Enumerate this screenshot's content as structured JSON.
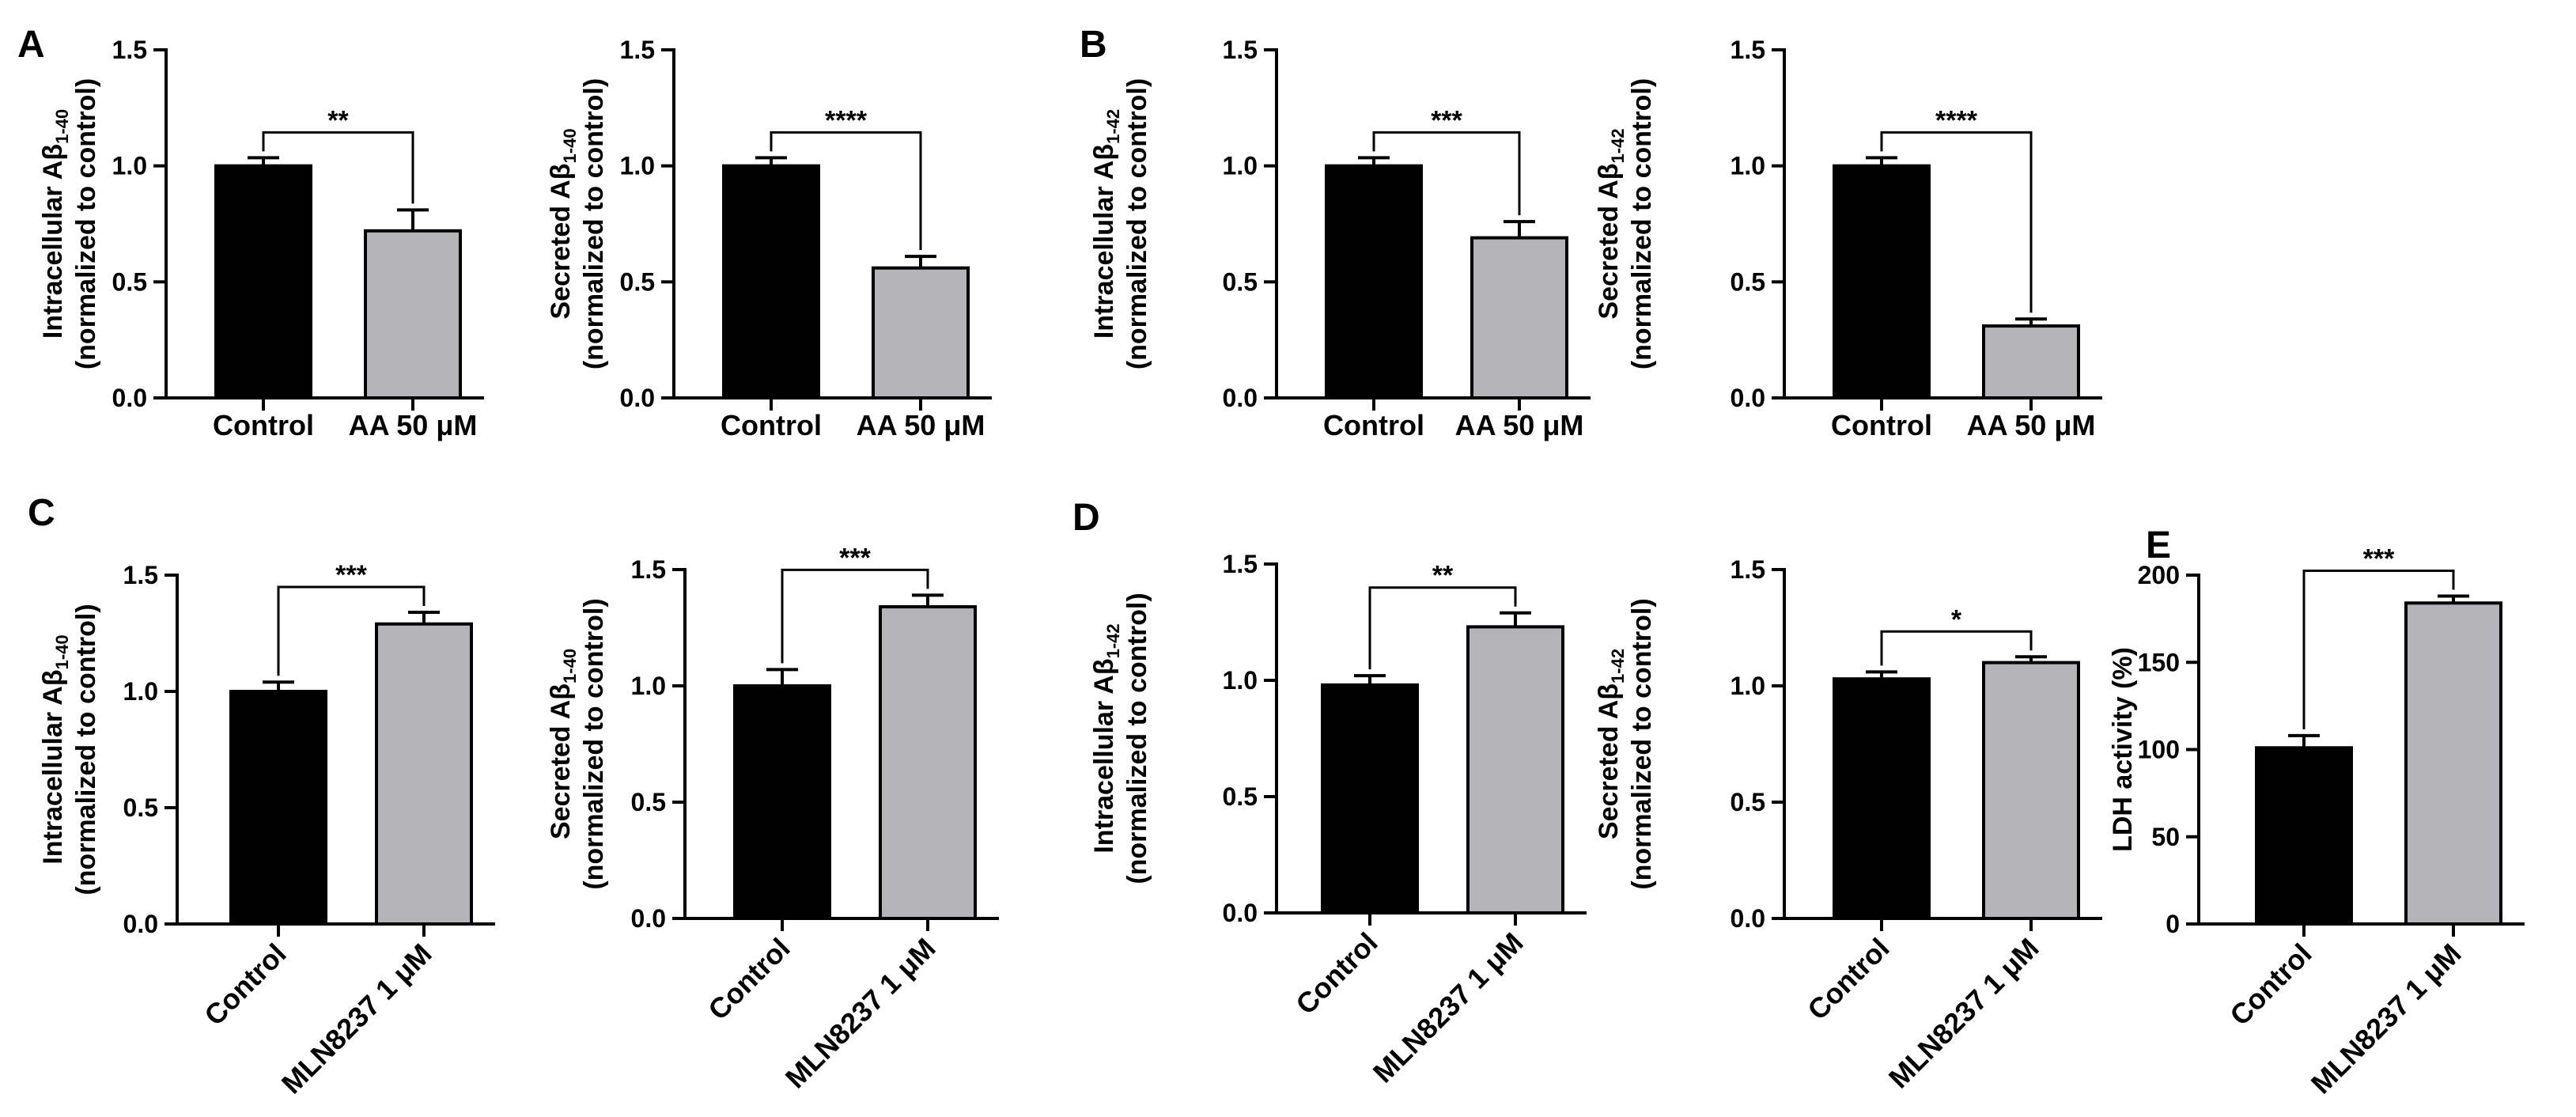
{
  "colors": {
    "control": "#000000",
    "treatment": "#b3b3b8",
    "axis": "#000000"
  },
  "panel_letters": [
    "A",
    "B",
    "C",
    "D",
    "E"
  ],
  "chart_data": [
    {
      "type": "bar",
      "panel": "A",
      "ylabel_main": "Intracellular Aβ",
      "ylabel_sub": "1-40",
      "ylabel2": "(normalized to control)",
      "categories": [
        "Control",
        "AA 50 μM"
      ],
      "values": [
        1.0,
        0.72
      ],
      "errors": [
        0.035,
        0.09
      ],
      "ylim": [
        0,
        1.5
      ],
      "yticks": [
        "0.0",
        "0.5",
        "1.0",
        "1.5"
      ],
      "significance": "**"
    },
    {
      "type": "bar",
      "ylabel_main": "Secreted Aβ",
      "ylabel_sub": "1-40",
      "ylabel2": "(normalized to control)",
      "categories": [
        "Control",
        "AA 50 μM"
      ],
      "values": [
        1.0,
        0.56
      ],
      "errors": [
        0.035,
        0.05
      ],
      "ylim": [
        0,
        1.5
      ],
      "yticks": [
        "0.0",
        "0.5",
        "1.0",
        "1.5"
      ],
      "significance": "****"
    },
    {
      "type": "bar",
      "panel": "B",
      "ylabel_main": "Intracellular Aβ",
      "ylabel_sub": "1-42",
      "ylabel2": "(normalized to control)",
      "categories": [
        "Control",
        "AA 50 μM"
      ],
      "values": [
        1.0,
        0.69
      ],
      "errors": [
        0.035,
        0.07
      ],
      "ylim": [
        0,
        1.5
      ],
      "yticks": [
        "0.0",
        "0.5",
        "1.0",
        "1.5"
      ],
      "significance": "***"
    },
    {
      "type": "bar",
      "ylabel_main": "Secreted Aβ",
      "ylabel_sub": "1-42",
      "ylabel2": "(normalized to control)",
      "categories": [
        "Control",
        "AA 50 μM"
      ],
      "values": [
        1.0,
        0.31
      ],
      "errors": [
        0.035,
        0.03
      ],
      "ylim": [
        0,
        1.5
      ],
      "yticks": [
        "0.0",
        "0.5",
        "1.0",
        "1.5"
      ],
      "significance": "****"
    },
    {
      "type": "bar",
      "panel": "C",
      "ylabel_main": "Intracellular Aβ",
      "ylabel_sub": "1-40",
      "ylabel2": "(normalized to control)",
      "categories": [
        "Control",
        "MLN8237 1 μM"
      ],
      "values": [
        1.0,
        1.29
      ],
      "errors": [
        0.04,
        0.05
      ],
      "ylim": [
        0,
        1.5
      ],
      "yticks": [
        "0.0",
        "0.5",
        "1.0",
        "1.5"
      ],
      "significance": "***"
    },
    {
      "type": "bar",
      "ylabel_main": "Secreted Aβ",
      "ylabel_sub": "1-40",
      "ylabel2": "(normalized to control)",
      "categories": [
        "Control",
        "MLN8237 1 μM"
      ],
      "values": [
        1.0,
        1.34
      ],
      "errors": [
        0.07,
        0.05
      ],
      "ylim": [
        0,
        1.5
      ],
      "yticks": [
        "0.0",
        "0.5",
        "1.0",
        "1.5"
      ],
      "significance": "***"
    },
    {
      "type": "bar",
      "panel": "D",
      "ylabel_main": "Intracellular Aβ",
      "ylabel_sub": "1-42",
      "ylabel2": "(normalized to control)",
      "categories": [
        "Control",
        "MLN8237 1 μM"
      ],
      "values": [
        0.98,
        1.23
      ],
      "errors": [
        0.04,
        0.06
      ],
      "ylim": [
        0,
        1.5
      ],
      "yticks": [
        "0.0",
        "0.5",
        "1.0",
        "1.5"
      ],
      "significance": "**"
    },
    {
      "type": "bar",
      "ylabel_main": "Secreted Aβ",
      "ylabel_sub": "1-42",
      "ylabel2": "(normalized to control)",
      "categories": [
        "Control",
        "MLN8237 1 μM"
      ],
      "values": [
        1.03,
        1.1
      ],
      "errors": [
        0.03,
        0.025
      ],
      "ylim": [
        0,
        1.5
      ],
      "yticks": [
        "0.0",
        "0.5",
        "1.0",
        "1.5"
      ],
      "significance": "*"
    },
    {
      "type": "bar",
      "panel": "E",
      "ylabel_main": "LDH activity (%)",
      "ylabel_sub": "",
      "ylabel2": "",
      "categories": [
        "Control",
        "MLN8237 1 μM"
      ],
      "values": [
        101,
        184
      ],
      "errors": [
        7,
        4
      ],
      "ylim": [
        0,
        200
      ],
      "yticks": [
        "0",
        "50",
        "100",
        "150",
        "200"
      ],
      "significance": "***"
    }
  ]
}
